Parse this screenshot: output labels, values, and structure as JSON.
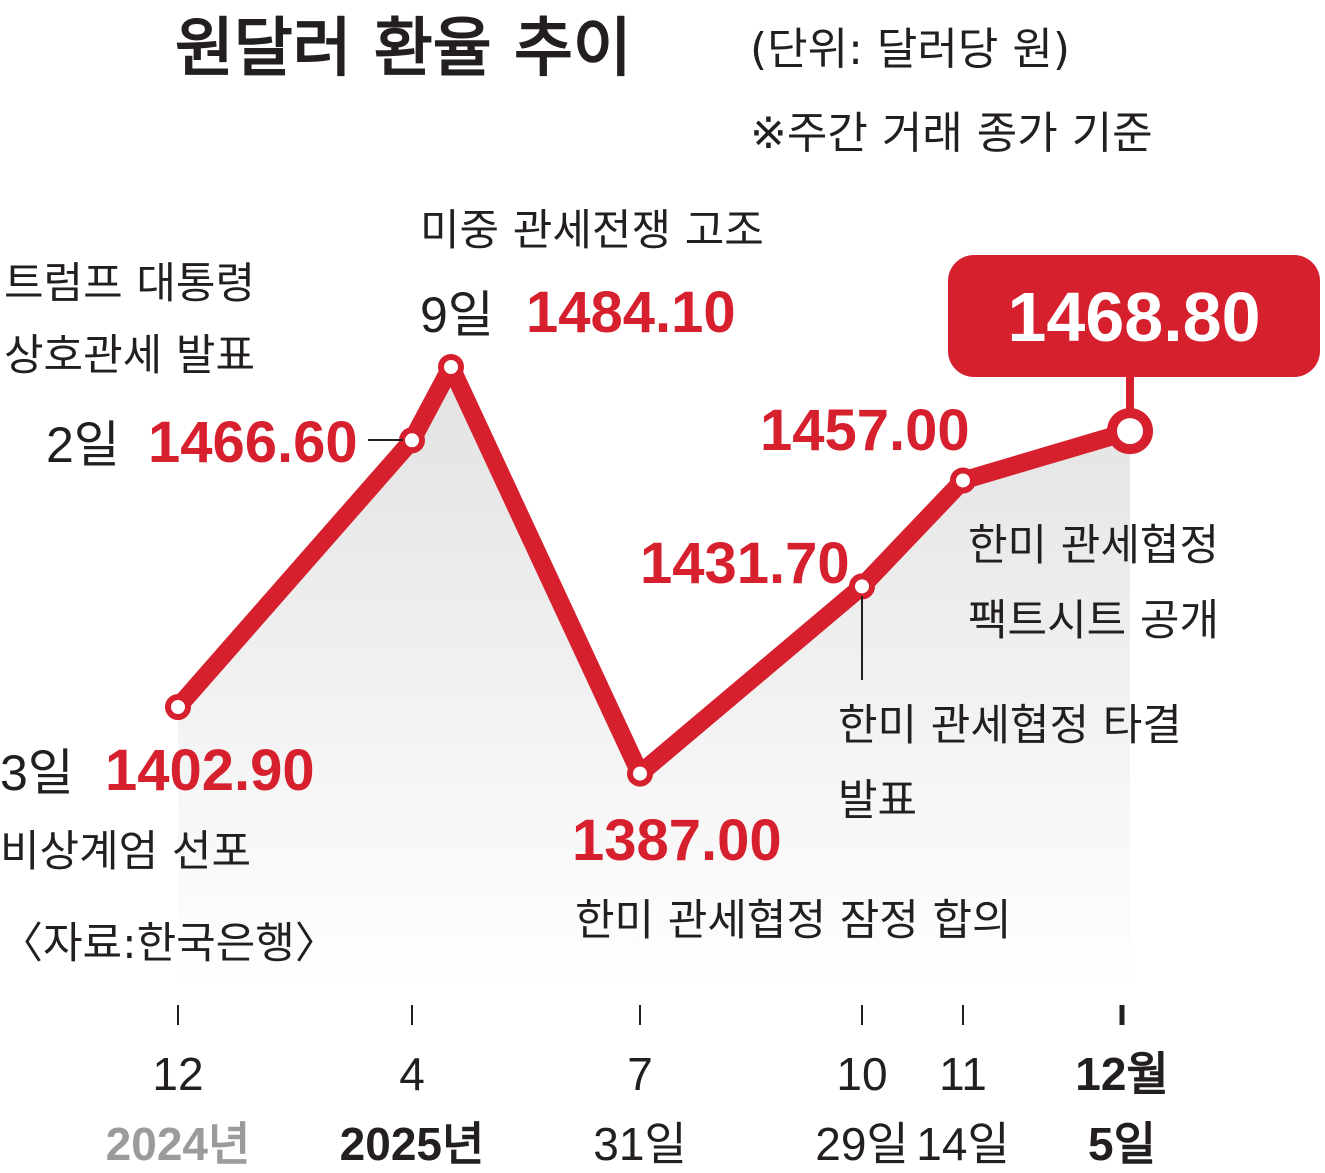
{
  "header": {
    "title": "원달러 환율 추이",
    "unit": "(단위: 달러당 원)",
    "note": "※주간 거래 종가 기준"
  },
  "source": "〈자료:한국은행〉",
  "colors": {
    "line": "#d7202e",
    "text": "#231f20",
    "area": "#e6e6e6",
    "muted": "#9b9b9b"
  },
  "chart_data": {
    "type": "line",
    "series": [
      {
        "values": [
          1402.9,
          1466.6,
          1484.1,
          1387.0,
          1431.7,
          1457.0,
          1468.8
        ]
      }
    ],
    "x": [
      "2024-12-03",
      "2025-04-02",
      "2025-04-09",
      "2025-07-31",
      "2025-10-29",
      "2025-11-14",
      "2025-12-05"
    ],
    "value_labels": [
      "1402.90",
      "1466.60",
      "1484.10",
      "1387.00",
      "1431.70",
      "1457.00",
      "1468.80"
    ],
    "day_labels": [
      "3일",
      "2일",
      "9일",
      "",
      "",
      "",
      ""
    ],
    "events": [
      "비상계엄 선포",
      "트럼프 대통령 상호관세 발표",
      "미중 관세전쟁 고조",
      "한미 관세협정 잠정 합의",
      "한미 관세협정 타결 발표",
      "한미 관세협정 팩트시트 공개",
      ""
    ],
    "x_ticks": [
      {
        "month": "12",
        "sub": "2024년"
      },
      {
        "month": "4",
        "sub": "2025년"
      },
      {
        "month": "7",
        "sub": "31일"
      },
      {
        "month": "10",
        "sub": "29일"
      },
      {
        "month": "11",
        "sub": "14일"
      },
      {
        "month": "12월",
        "sub": "5일"
      }
    ],
    "highlight": "1468.80"
  }
}
